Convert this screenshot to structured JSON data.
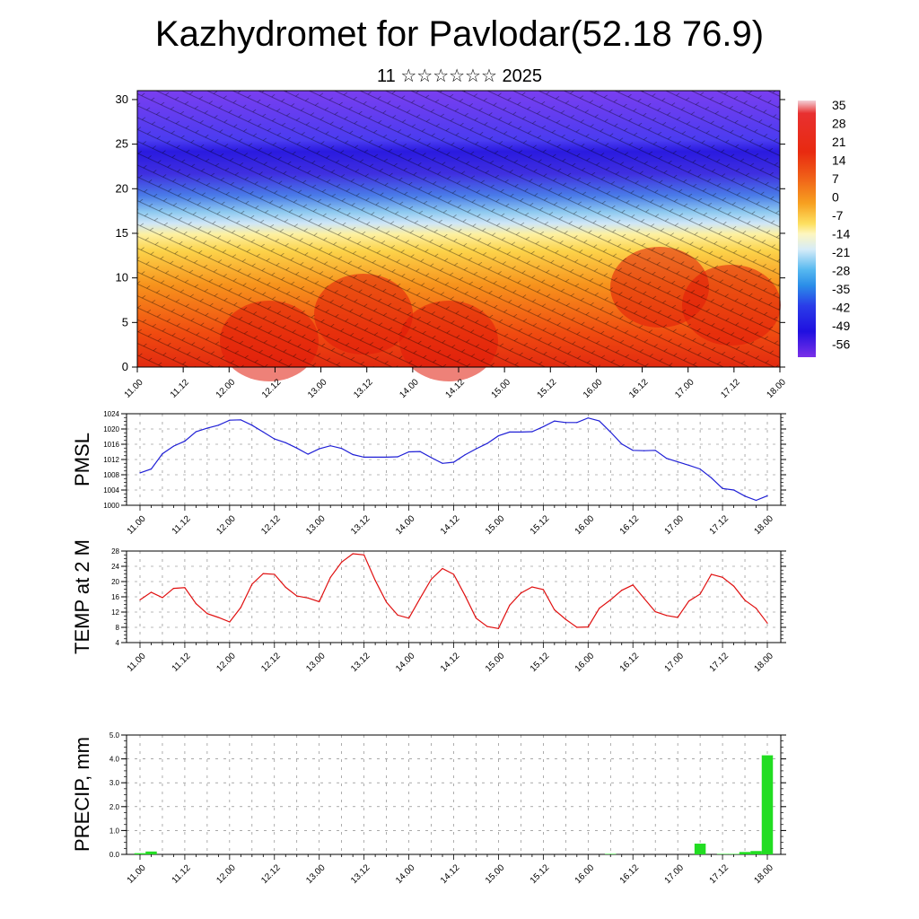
{
  "title": "Kazhydromet for Pavlodar(52.18 76.9)",
  "subtitle": "11 ☆☆☆☆☆☆ 2025",
  "colors": {
    "pmsl_line": "#1f1fd6",
    "temp_line": "#e01010",
    "precip_bar": "#22dd22",
    "frame": "#000000"
  },
  "chart_data": [
    {
      "type": "heatmap",
      "name": "vertical-section",
      "x_tick_labels": [
        "11.00",
        "11.12",
        "12.00",
        "12.12",
        "13.00",
        "13.12",
        "14.00",
        "14.12",
        "15.00",
        "15.12",
        "16.00",
        "16.12",
        "17.00",
        "17.12",
        "18.00"
      ],
      "y_ticks": [
        0,
        5,
        10,
        15,
        20,
        25,
        30
      ],
      "ylim": [
        0,
        31
      ],
      "colorbar_labels": [
        "35",
        "28",
        "21",
        "14",
        "7",
        "0",
        "-7",
        "-14",
        "-21",
        "-28",
        "-35",
        "-42",
        "-49",
        "-56"
      ],
      "colorbar_range": [
        -60,
        38
      ],
      "overlay": "wind barbs"
    },
    {
      "type": "line",
      "ylabel": "PMSL",
      "ylim": [
        1000,
        1024
      ],
      "y_ticks": [
        1000,
        1004,
        1008,
        1012,
        1016,
        1020,
        1024
      ],
      "x_tick_labels": [
        "11.00",
        "11.12",
        "12.00",
        "12.12",
        "13.00",
        "13.12",
        "14.00",
        "14.12",
        "15.00",
        "15.12",
        "16.00",
        "16.12",
        "17.00",
        "17.12",
        "18.00"
      ],
      "x": [
        0,
        3,
        6,
        9,
        12,
        15,
        18,
        21,
        24,
        27,
        30,
        33,
        36,
        39,
        42,
        45,
        48,
        51,
        54,
        57,
        60,
        63,
        66,
        69,
        72,
        75,
        78,
        81,
        84,
        87,
        90,
        93,
        96,
        99,
        102,
        105,
        108,
        111,
        114,
        117,
        120,
        123,
        126,
        129,
        132,
        135,
        138,
        141,
        144,
        147,
        150,
        153,
        156,
        159,
        162,
        165,
        168
      ],
      "values": [
        1008.5,
        1009.5,
        1013.5,
        1015.5,
        1016.8,
        1019.3,
        1020.2,
        1021,
        1022.3,
        1022.4,
        1021,
        1019.2,
        1017.4,
        1016.4,
        1015,
        1013.4,
        1014.8,
        1015.6,
        1014.9,
        1013.3,
        1012.6,
        1012.6,
        1012.6,
        1012.7,
        1014,
        1014.1,
        1012.5,
        1011,
        1011.3,
        1013.2,
        1014.8,
        1016.2,
        1018.2,
        1019.2,
        1019.2,
        1019.3,
        1020.6,
        1022.1,
        1021.7,
        1021.7,
        1022.9,
        1022.1,
        1019.2,
        1016.1,
        1014.4,
        1014.3,
        1014.4,
        1012.3,
        1011.4,
        1010.5,
        1009.5,
        1007.2,
        1004.4,
        1004,
        1002.4,
        1001.3,
        1002.5
      ]
    },
    {
      "type": "line",
      "ylabel": "TEMP at 2 M",
      "ylim": [
        4,
        28
      ],
      "y_ticks": [
        4,
        8,
        12,
        16,
        20,
        24,
        28
      ],
      "x_tick_labels": [
        "11.00",
        "11.12",
        "12.00",
        "12.12",
        "13.00",
        "13.12",
        "14.00",
        "14.12",
        "15.00",
        "15.12",
        "16.00",
        "16.12",
        "17.00",
        "17.12",
        "18.00"
      ],
      "x": [
        0,
        3,
        6,
        9,
        12,
        15,
        18,
        21,
        24,
        27,
        30,
        33,
        36,
        39,
        42,
        45,
        48,
        51,
        54,
        57,
        60,
        63,
        66,
        69,
        72,
        75,
        78,
        81,
        84,
        87,
        90,
        93,
        96,
        99,
        102,
        105,
        108,
        111,
        114,
        117,
        120,
        123,
        126,
        129,
        132,
        135,
        138,
        141,
        144,
        147,
        150,
        153,
        156,
        159,
        162,
        165,
        168
      ],
      "values": [
        15.2,
        17.2,
        15.8,
        18.2,
        18.4,
        14.2,
        11.6,
        10.6,
        9.4,
        13.2,
        19.3,
        22.1,
        21.9,
        18.5,
        16.2,
        15.7,
        14.7,
        21.1,
        25.1,
        27.3,
        27,
        20.3,
        14.6,
        11.2,
        10.4,
        15.6,
        20.6,
        23.4,
        21.9,
        16.4,
        10.4,
        8.2,
        7.7,
        13.8,
        17,
        18.6,
        17.9,
        12.6,
        10.1,
        8,
        8.1,
        13,
        15.2,
        17.7,
        19.1,
        15.6,
        12.1,
        11.1,
        10.6,
        14.9,
        16.7,
        21.9,
        21.1,
        18.8,
        15.1,
        13,
        9.1
      ]
    },
    {
      "type": "bar",
      "ylabel": "PRECIP, mm",
      "ylim": [
        0,
        5
      ],
      "y_tick_labels": [
        "0.0",
        "1.0",
        "2.0",
        "3.0",
        "4.0",
        "5.0"
      ],
      "x_tick_labels": [
        "11.00",
        "11.12",
        "12.00",
        "12.12",
        "13.00",
        "13.12",
        "14.00",
        "14.12",
        "15.00",
        "15.12",
        "16.00",
        "16.12",
        "17.00",
        "17.12",
        "18.00"
      ],
      "bars": [
        {
          "hour": 0,
          "value": 0.05
        },
        {
          "hour": 3,
          "value": 0.12
        },
        {
          "hour": 126,
          "value": 0.02
        },
        {
          "hour": 150,
          "value": 0.45
        },
        {
          "hour": 156,
          "value": 0.02
        },
        {
          "hour": 159,
          "value": 0.02
        },
        {
          "hour": 162,
          "value": 0.1
        },
        {
          "hour": 165,
          "value": 0.14
        },
        {
          "hour": 168,
          "value": 4.15
        }
      ]
    }
  ]
}
